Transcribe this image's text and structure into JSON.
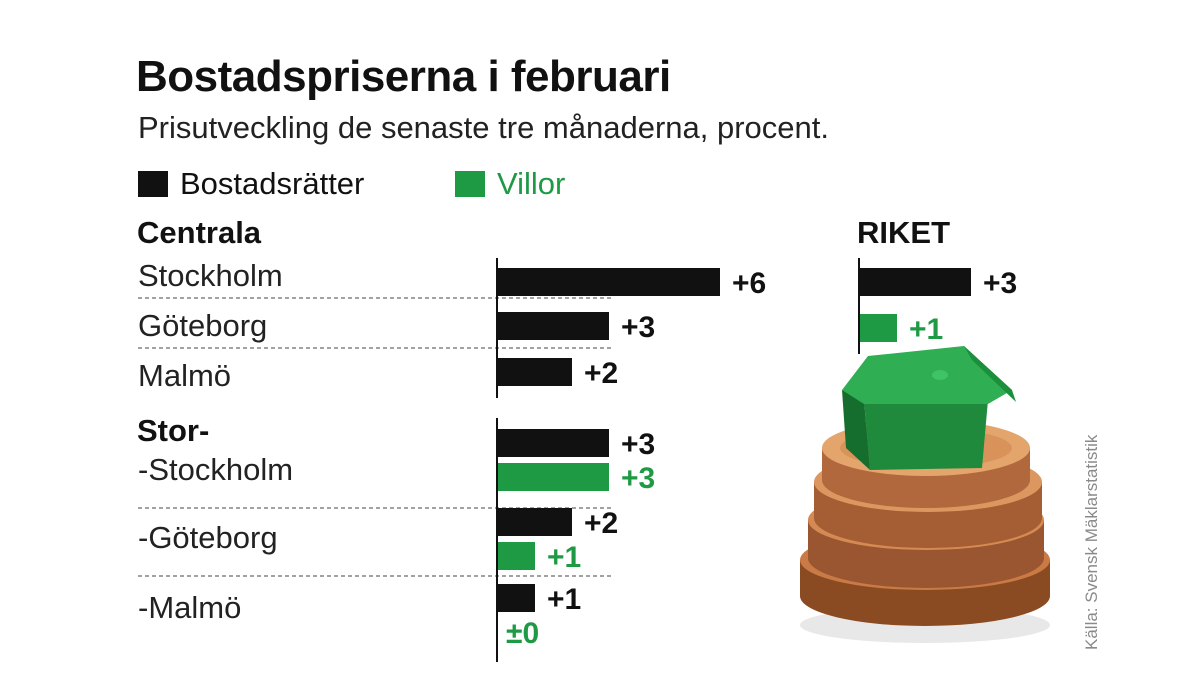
{
  "chart_data": {
    "type": "bar",
    "title": "Bostadspriserna i februari",
    "subtitle": "Prisutveckling de senaste tre månaderna, procent.",
    "legend": [
      {
        "name": "Bostadsrätter",
        "color": "#111111"
      },
      {
        "name": "Villor",
        "color": "#1e9a45"
      }
    ],
    "groups": [
      {
        "header": "Centrala",
        "rows": [
          {
            "label": "Stockholm",
            "bars": [
              {
                "series": "Bostadsrätter",
                "value": 6,
                "text": "+6"
              }
            ]
          },
          {
            "label": "Göteborg",
            "bars": [
              {
                "series": "Bostadsrätter",
                "value": 3,
                "text": "+3"
              }
            ]
          },
          {
            "label": "Malmö",
            "bars": [
              {
                "series": "Bostadsrätter",
                "value": 2,
                "text": "+2"
              }
            ]
          }
        ]
      },
      {
        "header": "Stor-",
        "rows": [
          {
            "label": "-Stockholm",
            "bars": [
              {
                "series": "Bostadsrätter",
                "value": 3,
                "text": "+3"
              },
              {
                "series": "Villor",
                "value": 3,
                "text": "+3"
              }
            ]
          },
          {
            "label": "-Göteborg",
            "bars": [
              {
                "series": "Bostadsrätter",
                "value": 2,
                "text": "+2"
              },
              {
                "series": "Villor",
                "value": 1,
                "text": "+1"
              }
            ]
          },
          {
            "label": "-Malmö",
            "bars": [
              {
                "series": "Bostadsrätter",
                "value": 1,
                "text": "+1"
              },
              {
                "series": "Villor",
                "value": 0,
                "text": "±0"
              }
            ]
          }
        ]
      }
    ],
    "riket": {
      "header": "RIKET",
      "bars": [
        {
          "series": "Bostadsrätter",
          "value": 3,
          "text": "+3"
        },
        {
          "series": "Villor",
          "value": 1,
          "text": "+1"
        }
      ]
    },
    "source": "Källa: Svensk Mäklarstatistik"
  }
}
